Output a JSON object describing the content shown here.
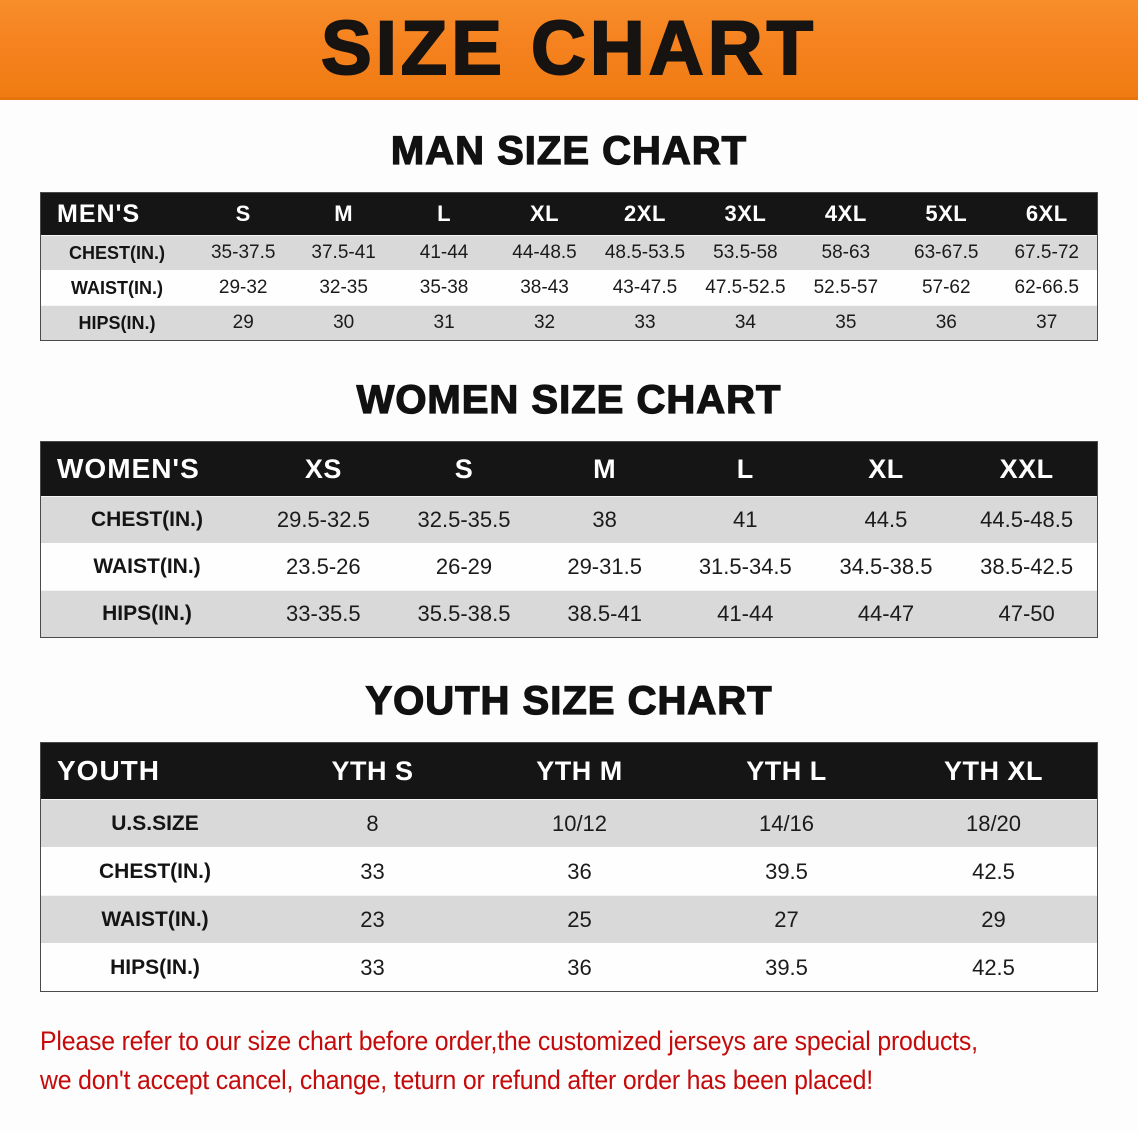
{
  "banner": {
    "title": "SIZE CHART"
  },
  "colors": {
    "banner-orange": "#f5821f",
    "header-black": "#151515",
    "stripe-gray": "#d9d9d9",
    "disclaimer-red": "#c40a0a"
  },
  "sections": [
    {
      "id": "men",
      "heading": "MAN SIZE CHART",
      "table": {
        "corner": "MEN'S",
        "sizes": [
          "S",
          "M",
          "L",
          "XL",
          "2XL",
          "3XL",
          "4XL",
          "5XL",
          "6XL"
        ],
        "rows": [
          {
            "label": "CHEST(IN.)",
            "values": [
              "35-37.5",
              "37.5-41",
              "41-44",
              "44-48.5",
              "48.5-53.5",
              "53.5-58",
              "58-63",
              "63-67.5",
              "67.5-72"
            ]
          },
          {
            "label": "WAIST(IN.)",
            "values": [
              "29-32",
              "32-35",
              "35-38",
              "38-43",
              "43-47.5",
              "47.5-52.5",
              "52.5-57",
              "57-62",
              "62-66.5"
            ]
          },
          {
            "label": "HIPS(IN.)",
            "values": [
              "29",
              "30",
              "31",
              "32",
              "33",
              "34",
              "35",
              "36",
              "37"
            ]
          }
        ]
      }
    },
    {
      "id": "women",
      "heading": "WOMEN SIZE CHART",
      "table": {
        "corner": "WOMEN'S",
        "sizes": [
          "XS",
          "S",
          "M",
          "L",
          "XL",
          "XXL"
        ],
        "rows": [
          {
            "label": "CHEST(IN.)",
            "values": [
              "29.5-32.5",
              "32.5-35.5",
              "38",
              "41",
              "44.5",
              "44.5-48.5"
            ]
          },
          {
            "label": "WAIST(IN.)",
            "values": [
              "23.5-26",
              "26-29",
              "29-31.5",
              "31.5-34.5",
              "34.5-38.5",
              "38.5-42.5"
            ]
          },
          {
            "label": "HIPS(IN.)",
            "values": [
              "33-35.5",
              "35.5-38.5",
              "38.5-41",
              "41-44",
              "44-47",
              "47-50"
            ]
          }
        ]
      }
    },
    {
      "id": "youth",
      "heading": "YOUTH SIZE CHART",
      "table": {
        "corner": "YOUTH",
        "sizes": [
          "YTH S",
          "YTH M",
          "YTH L",
          "YTH XL"
        ],
        "rows": [
          {
            "label": "U.S.SIZE",
            "values": [
              "8",
              "10/12",
              "14/16",
              "18/20"
            ]
          },
          {
            "label": "CHEST(IN.)",
            "values": [
              "33",
              "36",
              "39.5",
              "42.5"
            ]
          },
          {
            "label": "WAIST(IN.)",
            "values": [
              "23",
              "25",
              "27",
              "29"
            ]
          },
          {
            "label": "HIPS(IN.)",
            "values": [
              "33",
              "36",
              "39.5",
              "42.5"
            ]
          }
        ]
      }
    }
  ],
  "disclaimer": {
    "lines": [
      "Please refer to our size chart before order,the customized jerseys are special products,",
      "we don't accept cancel, change, teturn or refund after order has been placed!"
    ]
  }
}
